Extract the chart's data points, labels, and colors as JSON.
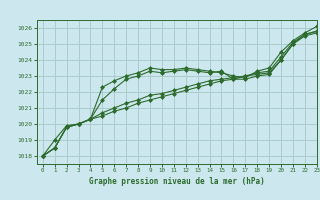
{
  "xlabel": "Graphe pression niveau de la mer (hPa)",
  "ylabel": "",
  "background_color": "#cce8ee",
  "grid_color": "#aacccc",
  "line_color": "#2d6b2d",
  "xlim": [
    -0.5,
    23
  ],
  "ylim": [
    1017.5,
    1026.5
  ],
  "yticks": [
    1018,
    1019,
    1020,
    1021,
    1022,
    1023,
    1024,
    1025,
    1026
  ],
  "xticks": [
    0,
    1,
    2,
    3,
    4,
    5,
    6,
    7,
    8,
    9,
    10,
    11,
    12,
    13,
    14,
    15,
    16,
    17,
    18,
    19,
    20,
    21,
    22,
    23
  ],
  "series": [
    [
      1018.0,
      1018.5,
      1019.8,
      1020.0,
      1020.3,
      1021.5,
      1022.2,
      1022.8,
      1023.0,
      1023.3,
      1023.2,
      1023.3,
      1023.4,
      1023.3,
      1023.2,
      1023.3,
      1022.8,
      1022.8,
      1023.0,
      1023.1,
      1024.0,
      1025.0,
      1025.6,
      1025.8
    ],
    [
      1018.0,
      1018.5,
      1019.8,
      1020.0,
      1020.3,
      1020.7,
      1021.0,
      1021.3,
      1021.5,
      1021.8,
      1021.9,
      1022.1,
      1022.3,
      1022.5,
      1022.7,
      1022.8,
      1022.9,
      1023.0,
      1023.1,
      1023.2,
      1024.0,
      1025.0,
      1025.5,
      1025.7
    ],
    [
      1018.0,
      1018.5,
      1019.8,
      1020.0,
      1020.3,
      1020.5,
      1020.8,
      1021.0,
      1021.3,
      1021.5,
      1021.7,
      1021.9,
      1022.1,
      1022.3,
      1022.5,
      1022.7,
      1022.8,
      1023.0,
      1023.2,
      1023.3,
      1024.2,
      1025.1,
      1025.6,
      1025.8
    ],
    [
      1018.0,
      1019.0,
      1019.9,
      1020.0,
      1020.3,
      1022.3,
      1022.7,
      1023.0,
      1023.2,
      1023.5,
      1023.4,
      1023.4,
      1023.5,
      1023.4,
      1023.3,
      1023.2,
      1023.0,
      1022.9,
      1023.3,
      1023.5,
      1024.5,
      1025.2,
      1025.7,
      1026.1
    ]
  ]
}
